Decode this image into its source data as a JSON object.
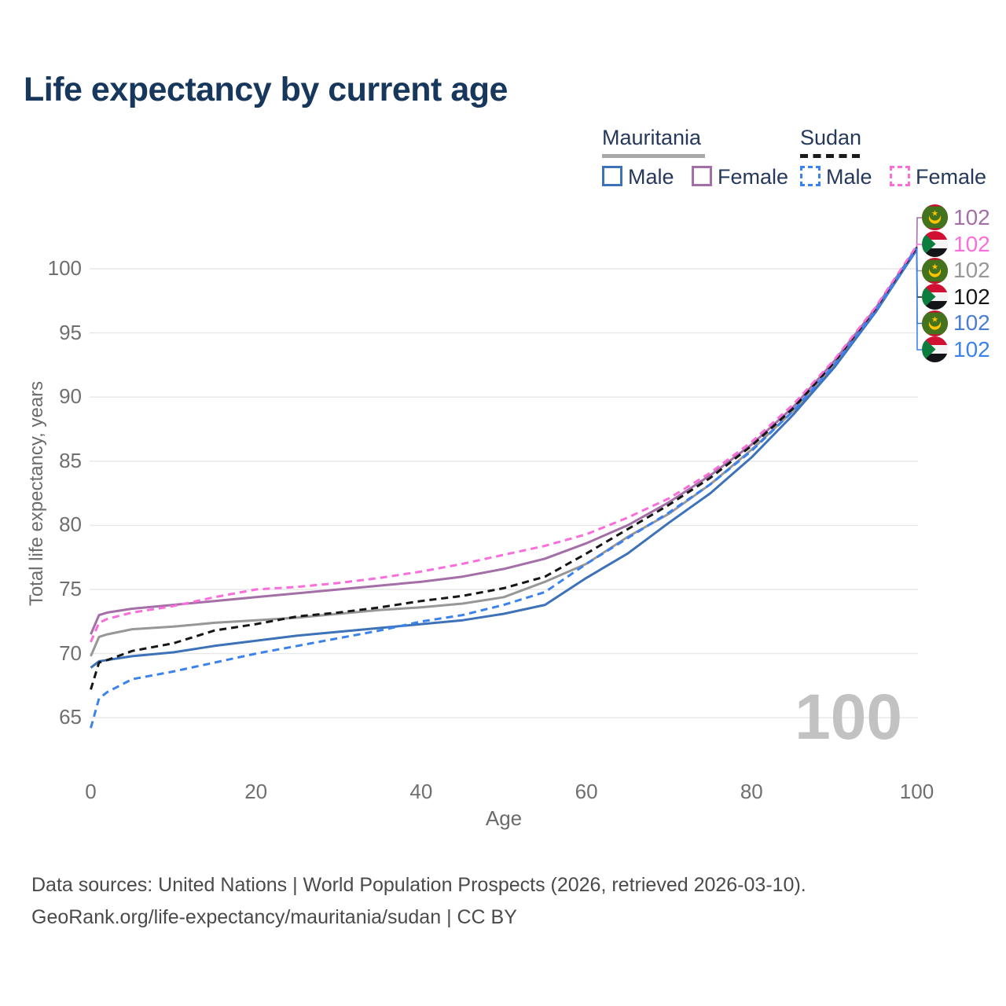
{
  "title": "Life expectancy by current age",
  "legend": {
    "mauritania": {
      "label": "Mauritania",
      "line_style": "solid",
      "male_label": "Male",
      "female_label": "Female"
    },
    "sudan": {
      "label": "Sudan",
      "line_style": "dashed",
      "male_label": "Male",
      "female_label": "Female"
    }
  },
  "chart_data": {
    "type": "line",
    "title": "Life expectancy by current age",
    "xlabel": "Age",
    "ylabel": "Total life expectancy, years",
    "xlim": [
      0,
      100
    ],
    "ylim": [
      63,
      105
    ],
    "xticks": [
      0,
      20,
      40,
      60,
      80,
      100
    ],
    "yticks": [
      65,
      70,
      75,
      80,
      85,
      90,
      95,
      100
    ],
    "grid": "horizontal",
    "legend_position": "top-right",
    "ages": [
      0,
      1,
      2,
      5,
      10,
      15,
      20,
      25,
      30,
      35,
      40,
      45,
      50,
      55,
      60,
      65,
      70,
      75,
      80,
      85,
      90,
      95,
      100
    ],
    "series": [
      {
        "name": "Mauritania Overall",
        "country": "Mauritania",
        "sex": "all",
        "color": "#979797",
        "dash": false,
        "values": [
          69.8,
          71.3,
          71.5,
          71.9,
          72.1,
          72.4,
          72.6,
          72.8,
          73.1,
          73.4,
          73.6,
          73.9,
          74.4,
          75.6,
          77.0,
          79.1,
          80.9,
          83.2,
          85.9,
          88.9,
          92.5,
          96.7,
          101.6
        ]
      },
      {
        "name": "Mauritania Female",
        "country": "Mauritania",
        "sex": "female",
        "color": "#a46fa6",
        "dash": false,
        "values": [
          71.5,
          73.0,
          73.2,
          73.5,
          73.8,
          74.1,
          74.4,
          74.7,
          75.0,
          75.3,
          75.6,
          76.0,
          76.6,
          77.4,
          78.6,
          80.0,
          81.8,
          83.9,
          86.3,
          89.2,
          92.8,
          96.9,
          101.7
        ]
      },
      {
        "name": "Mauritania Male",
        "country": "Mauritania",
        "sex": "male",
        "color": "#3d72b8",
        "dash": false,
        "values": [
          68.9,
          69.4,
          69.5,
          69.8,
          70.1,
          70.6,
          71.0,
          71.4,
          71.7,
          72.0,
          72.3,
          72.6,
          73.1,
          73.8,
          75.9,
          77.8,
          80.2,
          82.5,
          85.3,
          88.6,
          92.3,
          96.6,
          101.5
        ]
      },
      {
        "name": "Sudan Overall",
        "country": "Sudan",
        "sex": "all",
        "color": "#161616",
        "dash": true,
        "values": [
          67.2,
          69.3,
          69.5,
          70.2,
          70.8,
          71.8,
          72.3,
          72.9,
          73.2,
          73.6,
          74.1,
          74.5,
          75.1,
          76.0,
          77.8,
          79.7,
          81.6,
          83.7,
          86.2,
          89.1,
          92.7,
          96.9,
          101.7
        ]
      },
      {
        "name": "Sudan Female",
        "country": "Sudan",
        "sex": "female",
        "color": "#f96edb",
        "dash": true,
        "values": [
          70.9,
          72.4,
          72.7,
          73.2,
          73.7,
          74.4,
          75.0,
          75.2,
          75.5,
          75.9,
          76.4,
          77.0,
          77.7,
          78.4,
          79.3,
          80.6,
          82.1,
          84.1,
          86.5,
          89.4,
          92.9,
          97.0,
          101.8
        ]
      },
      {
        "name": "Sudan Male",
        "country": "Sudan",
        "sex": "male",
        "color": "#3c82ec",
        "dash": true,
        "values": [
          64.2,
          66.5,
          67.0,
          68.0,
          68.6,
          69.3,
          70.0,
          70.6,
          71.2,
          71.8,
          72.5,
          73.0,
          73.8,
          74.8,
          77.0,
          79.0,
          81.0,
          83.2,
          85.8,
          88.9,
          92.5,
          96.7,
          101.6
        ]
      }
    ],
    "end_labels": [
      {
        "series": "Mauritania Female",
        "flag": "mauritania-flag-icon",
        "value": "102",
        "color": "#a46fa6"
      },
      {
        "series": "Sudan Female",
        "flag": "sudan-flag-icon",
        "value": "102",
        "color": "#f96edb"
      },
      {
        "series": "Mauritania Overall",
        "flag": "mauritania-flag-icon",
        "value": "102",
        "color": "#979797"
      },
      {
        "series": "Sudan Overall",
        "flag": "sudan-flag-icon",
        "value": "102",
        "color": "#161616"
      },
      {
        "series": "Mauritania Male",
        "flag": "mauritania-flag-icon",
        "value": "102",
        "color": "#4a7ed2"
      },
      {
        "series": "Sudan Male",
        "flag": "sudan-flag-icon",
        "value": "102",
        "color": "#3c82ec"
      }
    ],
    "watermark": "100"
  },
  "footer": {
    "line1": "Data sources: United Nations | World Population Prospects (2026, retrieved 2026-03-10).",
    "line2": "GeoRank.org/life-expectancy/mauritania/sudan | CC BY"
  }
}
